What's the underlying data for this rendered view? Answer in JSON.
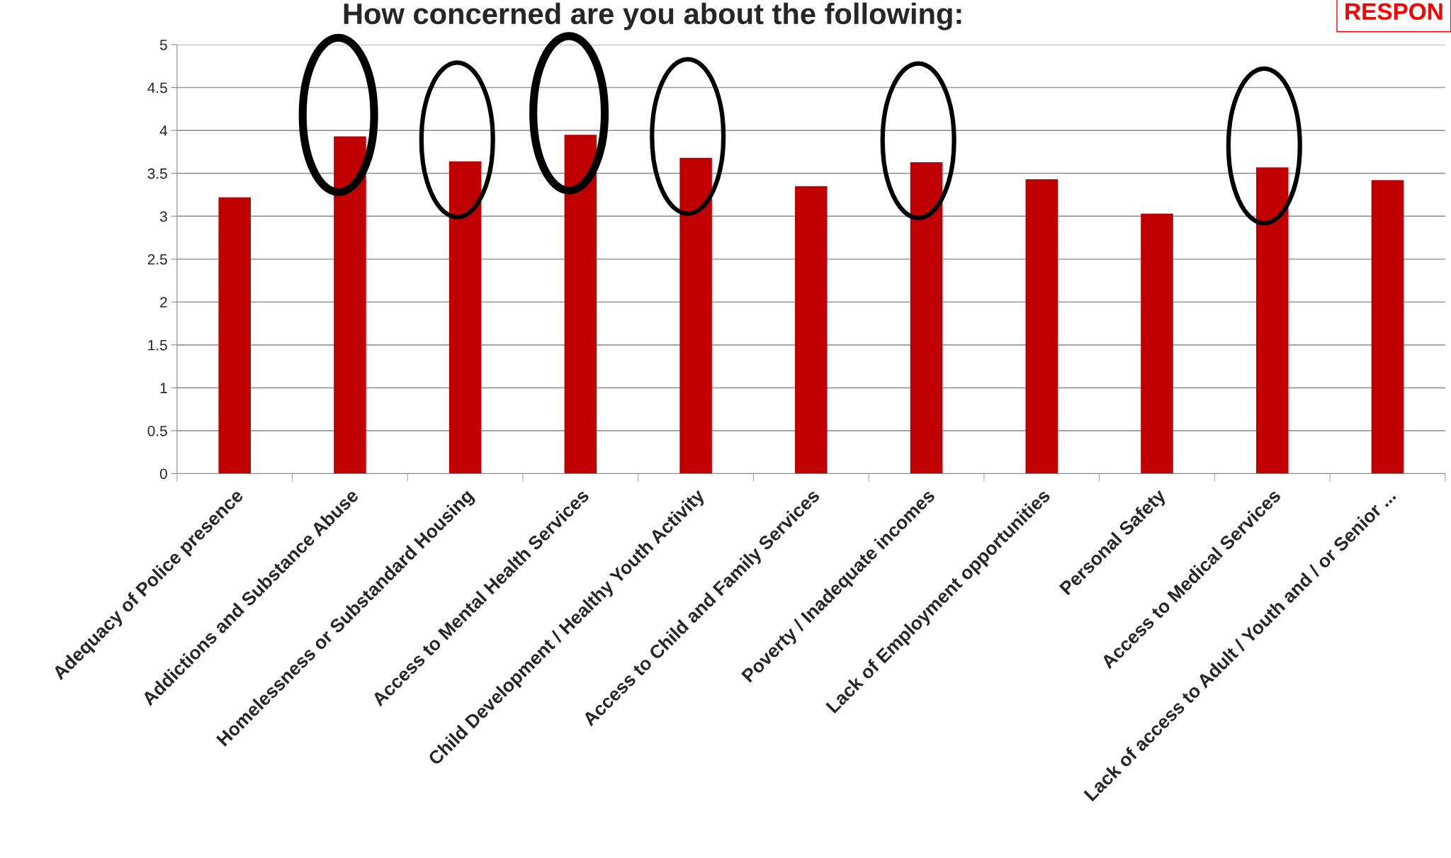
{
  "chart_data": {
    "type": "bar",
    "title": "How concerned are you about the following:",
    "categories": [
      "Adequacy of Police presence",
      "Addictions and Substance Abuse",
      "Homelessness or Substandard Housing",
      "Access to Mental Health Services",
      "Child Development / Healthy Youth Activity",
      "Access to Child and Family Services",
      "Poverty / Inadequate incomes",
      "Lack of Employment opportunities",
      "Personal Safety",
      "Access to Medical Services",
      "Lack of access to Adult / Youth and / or Senior ..."
    ],
    "values": [
      3.22,
      3.93,
      3.64,
      3.95,
      3.68,
      3.35,
      3.63,
      3.43,
      3.03,
      3.57,
      3.42
    ],
    "color": "#c00000",
    "ylim": [
      0,
      5
    ],
    "yticks": [
      0,
      0.5,
      1,
      1.5,
      2,
      2.5,
      3,
      3.5,
      4,
      4.5,
      5
    ],
    "grid": "y",
    "annotations": [
      "RESPON"
    ]
  }
}
